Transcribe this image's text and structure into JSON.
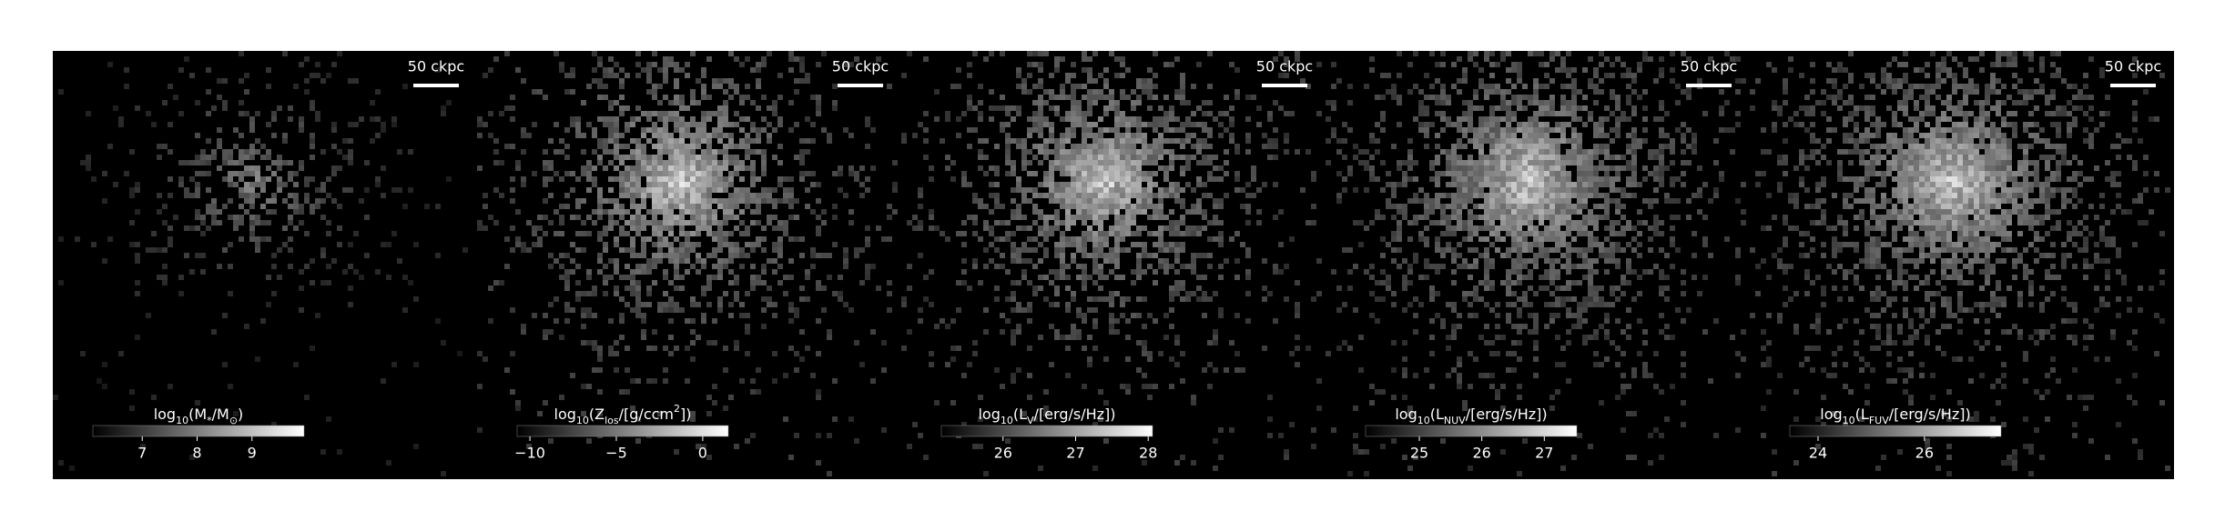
{
  "chart_data": {
    "type": "image-panels",
    "panels": [
      {
        "scale_label": "50 ckpc",
        "label": [
          {
            "text": "log"
          },
          {
            "text": "10",
            "sub": true
          },
          {
            "text": "(M"
          },
          {
            "text": "*",
            "sub": true
          },
          {
            "text": "/M"
          },
          {
            "text": "⊙",
            "sub": true
          },
          {
            "text": ")"
          }
        ],
        "clim": [
          6.1,
          9.95
        ],
        "ticks": [
          7,
          8,
          9
        ],
        "spread": 0.55
      },
      {
        "scale_label": "50 ckpc",
        "label": [
          {
            "text": "log"
          },
          {
            "text": "10",
            "sub": true
          },
          {
            "text": "(Z"
          },
          {
            "text": "los",
            "sub": true
          },
          {
            "text": "/[g/ccm"
          },
          {
            "text": "2",
            "sup": true
          },
          {
            "text": "])"
          }
        ],
        "clim": [
          -10.74,
          1.48
        ],
        "ticks": [
          {
            "value": -10,
            "label": "−10"
          },
          {
            "value": -5,
            "label": "−5"
          },
          0
        ],
        "spread": 1.0
      },
      {
        "scale_label": "50 ckpc",
        "label": [
          {
            "text": "log"
          },
          {
            "text": "10",
            "sub": true
          },
          {
            "text": "(L"
          },
          {
            "text": "V",
            "sub": true
          },
          {
            "text": "/[erg/s/Hz])"
          }
        ],
        "clim": [
          25.15,
          28.06
        ],
        "ticks": [
          26,
          27,
          28
        ],
        "spread": 1.0
      },
      {
        "scale_label": "50 ckpc",
        "label": [
          {
            "text": "log"
          },
          {
            "text": "10",
            "sub": true
          },
          {
            "text": "(L"
          },
          {
            "text": "NUV",
            "sub": true
          },
          {
            "text": "/[erg/s/Hz])"
          }
        ],
        "clim": [
          24.14,
          27.52
        ],
        "ticks": [
          25,
          26,
          27
        ],
        "spread": 1.1
      },
      {
        "scale_label": "50 ckpc",
        "label": [
          {
            "text": "log"
          },
          {
            "text": "10",
            "sub": true
          },
          {
            "text": "(L"
          },
          {
            "text": "FUV",
            "sub": true
          },
          {
            "text": "/[erg/s/Hz])"
          }
        ],
        "clim": [
          23.47,
          27.44
        ],
        "ticks": [
          24,
          26
        ],
        "spread": 1.1
      }
    ]
  }
}
